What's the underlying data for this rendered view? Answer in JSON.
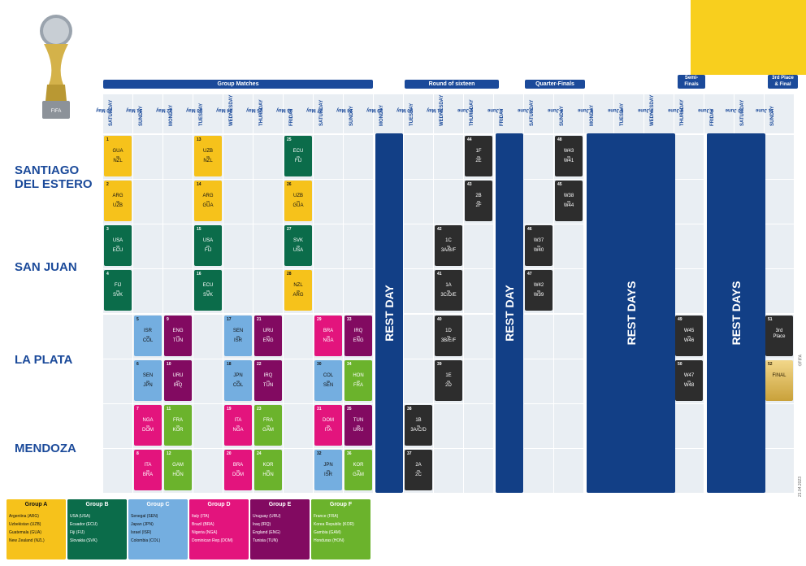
{
  "colors": {
    "groupA": "#f6c21b",
    "groupB": "#0b6c4a",
    "groupC": "#74aee0",
    "groupD": "#e3147d",
    "groupE": "#820a61",
    "groupF": "#6bb32c",
    "knockout": "#2d2d2d",
    "rest": "#123f86",
    "header": "#1b4a9a",
    "corner": "#f8cf1e"
  },
  "trophy": {
    "icon": "trophy-icon",
    "label": "FIFA"
  },
  "phases": {
    "group": "Group Matches",
    "r16": "Round of sixteen",
    "qf": "Quarter-Finals",
    "sf1": "Semi-",
    "sf2": "Finals",
    "fin1": "3rd Place",
    "fin2": "& Final"
  },
  "days": [
    {
      "d": "SATURDAY",
      "dt": "20 May"
    },
    {
      "d": "SUNDAY",
      "dt": "21 May"
    },
    {
      "d": "MONDAY",
      "dt": "22 May"
    },
    {
      "d": "TUESDAY",
      "dt": "23 May"
    },
    {
      "d": "WEDNESDAY",
      "dt": "24 May"
    },
    {
      "d": "THURSDAY",
      "dt": "25 May"
    },
    {
      "d": "FRIDAY",
      "dt": "26 May"
    },
    {
      "d": "SATURDAY",
      "dt": "27 May"
    },
    {
      "d": "SUNDAY",
      "dt": "28 May"
    },
    {
      "d": "MONDAY",
      "dt": "29 May"
    },
    {
      "d": "TUESDAY",
      "dt": "30 May"
    },
    {
      "d": "WEDNESDAY",
      "dt": "31 May"
    },
    {
      "d": "THURSDAY",
      "dt": "1 June"
    },
    {
      "d": "FRIDAY",
      "dt": "2 June"
    },
    {
      "d": "SATURDAY",
      "dt": "3 June"
    },
    {
      "d": "SUNDAY",
      "dt": "4 June"
    },
    {
      "d": "MONDAY",
      "dt": "5 June"
    },
    {
      "d": "TUESDAY",
      "dt": "6 June"
    },
    {
      "d": "WEDNESDAY",
      "dt": "7 June"
    },
    {
      "d": "THURSDAY",
      "dt": "8 June"
    },
    {
      "d": "FRIDAY",
      "dt": "9 June"
    },
    {
      "d": "SATURDAY",
      "dt": "10 June"
    },
    {
      "d": "SUNDAY",
      "dt": "11 June"
    }
  ],
  "venues": [
    "SANTIAGO",
    "DEL ESTERO",
    "SAN JUAN",
    "LA PLATA",
    "MENDOZA"
  ],
  "rest": {
    "r1": "REST DAY",
    "r2": "REST DAY",
    "r3": "REST DAYS",
    "r4": "REST DAYS"
  },
  "matches": [
    {
      "n": "1",
      "a": "GUA",
      "b": "NZL",
      "g": "gA"
    },
    {
      "n": "2",
      "a": "ARG",
      "b": "UZB",
      "g": "gA"
    },
    {
      "n": "13",
      "a": "UZB",
      "b": "NZL",
      "g": "gA"
    },
    {
      "n": "14",
      "a": "ARG",
      "b": "GUA",
      "g": "gA"
    },
    {
      "n": "25",
      "a": "ECU",
      "b": "FIJ",
      "g": "gB"
    },
    {
      "n": "26",
      "a": "UZB",
      "b": "GUA",
      "g": "gA"
    },
    {
      "n": "3",
      "a": "USA",
      "b": "ECU",
      "g": "gB"
    },
    {
      "n": "4",
      "a": "FIJ",
      "b": "SVK",
      "g": "gB"
    },
    {
      "n": "15",
      "a": "USA",
      "b": "FIJ",
      "g": "gB"
    },
    {
      "n": "16",
      "a": "ECU",
      "b": "SVK",
      "g": "gB"
    },
    {
      "n": "27",
      "a": "SVK",
      "b": "USA",
      "g": "gB"
    },
    {
      "n": "28",
      "a": "NZL",
      "b": "ARG",
      "g": "gA"
    },
    {
      "n": "5",
      "a": "ISR",
      "b": "COL",
      "g": "gC"
    },
    {
      "n": "6",
      "a": "SEN",
      "b": "JPN",
      "g": "gC"
    },
    {
      "n": "9",
      "a": "ENG",
      "b": "TUN",
      "g": "gE"
    },
    {
      "n": "10",
      "a": "URU",
      "b": "IRQ",
      "g": "gE"
    },
    {
      "n": "17",
      "a": "SEN",
      "b": "ISR",
      "g": "gC"
    },
    {
      "n": "18",
      "a": "JPN",
      "b": "COL",
      "g": "gC"
    },
    {
      "n": "21",
      "a": "URU",
      "b": "ENG",
      "g": "gE"
    },
    {
      "n": "22",
      "a": "IRQ",
      "b": "TUN",
      "g": "gE"
    },
    {
      "n": "29",
      "a": "BRA",
      "b": "NGA",
      "g": "gD"
    },
    {
      "n": "30",
      "a": "COL",
      "b": "SEN",
      "g": "gC"
    },
    {
      "n": "33",
      "a": "IRQ",
      "b": "ENG",
      "g": "gE"
    },
    {
      "n": "34",
      "a": "HON",
      "b": "FRA",
      "g": "gF"
    },
    {
      "n": "7",
      "a": "NGA",
      "b": "DOM",
      "g": "gD"
    },
    {
      "n": "8",
      "a": "ITA",
      "b": "BRA",
      "g": "gD"
    },
    {
      "n": "11",
      "a": "FRA",
      "b": "KOR",
      "g": "gF"
    },
    {
      "n": "12",
      "a": "GAM",
      "b": "HON",
      "g": "gF"
    },
    {
      "n": "19",
      "a": "ITA",
      "b": "NGA",
      "g": "gD"
    },
    {
      "n": "20",
      "a": "BRA",
      "b": "DOM",
      "g": "gD"
    },
    {
      "n": "23",
      "a": "FRA",
      "b": "GAM",
      "g": "gF"
    },
    {
      "n": "24",
      "a": "KOR",
      "b": "HON",
      "g": "gF"
    },
    {
      "n": "31",
      "a": "DOM",
      "b": "ITA",
      "g": "gD"
    },
    {
      "n": "32",
      "a": "JPN",
      "b": "ISR",
      "g": "gC"
    },
    {
      "n": "35",
      "a": "TUN",
      "b": "URU",
      "g": "gE"
    },
    {
      "n": "36",
      "a": "KOR",
      "b": "GAM",
      "g": "gF"
    },
    {
      "n": "44",
      "a": "1F",
      "b": "2E",
      "g": "ko"
    },
    {
      "n": "43",
      "a": "2B",
      "b": "2F",
      "g": "ko"
    },
    {
      "n": "42",
      "a": "1C",
      "b": "3A/B/F",
      "g": "ko"
    },
    {
      "n": "41",
      "a": "1A",
      "b": "3C/D/E",
      "g": "ko"
    },
    {
      "n": "40",
      "a": "1D",
      "b": "3B/E/F",
      "g": "ko"
    },
    {
      "n": "39",
      "a": "1E",
      "b": "2D",
      "g": "ko"
    },
    {
      "n": "38",
      "a": "1B",
      "b": "3A/C/D",
      "g": "ko"
    },
    {
      "n": "37",
      "a": "2A",
      "b": "2C",
      "g": "ko"
    },
    {
      "n": "48",
      "a": "W43",
      "b": "W41",
      "g": "ko"
    },
    {
      "n": "45",
      "a": "W38",
      "b": "W44",
      "g": "ko"
    },
    {
      "n": "46",
      "a": "W37",
      "b": "W40",
      "g": "ko"
    },
    {
      "n": "47",
      "a": "W42",
      "b": "W39",
      "g": "ko"
    },
    {
      "n": "49",
      "a": "W45",
      "b": "W46",
      "g": "ko"
    },
    {
      "n": "50",
      "a": "W47",
      "b": "W48",
      "g": "ko"
    },
    {
      "n": "51",
      "a": "3rd",
      "b": "Place",
      "g": "ko"
    },
    {
      "n": "52",
      "a": "FINAL",
      "b": "",
      "g": "final"
    }
  ],
  "vs": "vs",
  "legend": [
    {
      "title": "Group A",
      "teams": [
        "Argentina (ARG)",
        "Uzbekistan (UZB)",
        "Guatemala (GUA)",
        "New Zealand (NZL)"
      ]
    },
    {
      "title": "Group B",
      "teams": [
        "USA (USA)",
        "Ecuador (ECU)",
        "Fiji (FIJ)",
        "Slovakia (SVK)"
      ]
    },
    {
      "title": "Group C",
      "teams": [
        "Senegal (SEN)",
        "Japan (JPN)",
        "Israel (ISR)",
        "Colombia (COL)"
      ]
    },
    {
      "title": "Group D",
      "teams": [
        "Italy (ITA)",
        "Brazil (BRA)",
        "Nigeria (NGA)",
        "Dominican Rep.(DOM)"
      ]
    },
    {
      "title": "Group E",
      "teams": [
        "Uruguay (URU)",
        "Iraq (IRQ)",
        "England (ENG)",
        "Tunisia (TUN)"
      ]
    },
    {
      "title": "Group F",
      "teams": [
        "France (FRA)",
        "Korea Republic (KOR)",
        "Gambia (GAM)",
        "Honduras (HON)"
      ]
    }
  ],
  "side": {
    "copy": "©FIFA",
    "date": "21.04.2023"
  }
}
